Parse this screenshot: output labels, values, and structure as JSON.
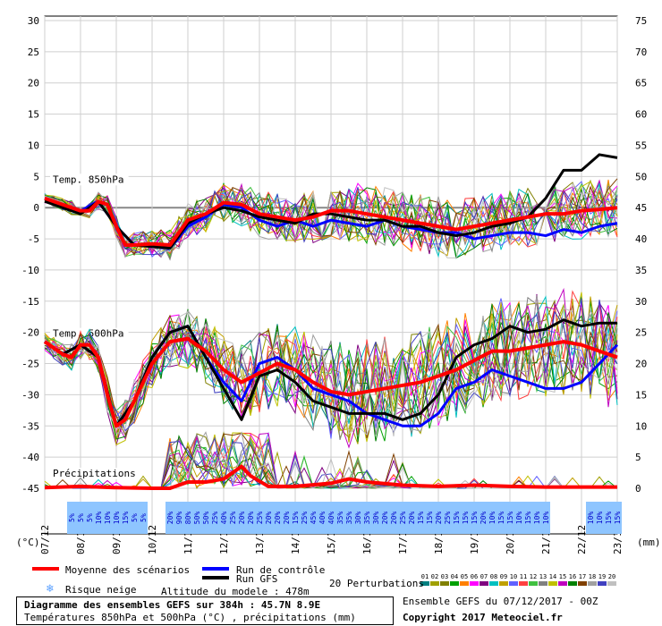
{
  "chart_data": {
    "type": "line",
    "left_axis": {
      "unit": "(°C)",
      "ticks": [
        30,
        25,
        20,
        15,
        10,
        5,
        0,
        -5,
        -10,
        -15,
        -20,
        -25,
        -30,
        -35,
        -40,
        -45
      ],
      "range": [
        -45,
        30
      ]
    },
    "right_axis": {
      "unit": "(mm)",
      "ticks": [
        75,
        70,
        65,
        60,
        55,
        50,
        45,
        40,
        35,
        30,
        25,
        20,
        15,
        10,
        5,
        0
      ],
      "range": [
        0,
        75
      ]
    },
    "x_dates": [
      "07/12",
      "08/12",
      "09/12",
      "10/12",
      "11/12",
      "12/12",
      "13/12",
      "14/12",
      "15/12",
      "16/12",
      "17/12",
      "18/12",
      "19/12",
      "20/12",
      "21/12",
      "22/12",
      "23/12"
    ],
    "x_range_hours": [
      0,
      384
    ],
    "panels": [
      {
        "label": "Temp. 850hPa"
      },
      {
        "label": "Temp. 500hPa"
      },
      {
        "label": "Précipitations"
      }
    ],
    "series_t850": {
      "mean": [
        [
          0,
          1.5
        ],
        [
          6,
          1
        ],
        [
          12,
          0.5
        ],
        [
          24,
          -0.5
        ],
        [
          30,
          -0.5
        ],
        [
          36,
          1
        ],
        [
          42,
          0.5
        ],
        [
          48,
          -3
        ],
        [
          54,
          -6
        ],
        [
          60,
          -6
        ],
        [
          72,
          -5.8
        ],
        [
          84,
          -6
        ],
        [
          96,
          -2
        ],
        [
          108,
          -1
        ],
        [
          120,
          0.8
        ],
        [
          132,
          0.5
        ],
        [
          144,
          -1
        ],
        [
          156,
          -1.5
        ],
        [
          168,
          -2
        ],
        [
          180,
          -1.5
        ],
        [
          192,
          -0.5
        ],
        [
          204,
          -0.5
        ],
        [
          216,
          -1
        ],
        [
          228,
          -1.5
        ],
        [
          240,
          -2
        ],
        [
          252,
          -2.5
        ],
        [
          264,
          -3
        ],
        [
          276,
          -3.5
        ],
        [
          288,
          -3
        ],
        [
          300,
          -2.5
        ],
        [
          312,
          -2
        ],
        [
          324,
          -1.5
        ],
        [
          336,
          -1
        ],
        [
          348,
          -1
        ],
        [
          360,
          -0.5
        ],
        [
          372,
          -0.3
        ],
        [
          384,
          0
        ]
      ],
      "control": [
        [
          0,
          1.5
        ],
        [
          12,
          0.5
        ],
        [
          24,
          -0.5
        ],
        [
          36,
          1
        ],
        [
          48,
          -3
        ],
        [
          60,
          -6
        ],
        [
          84,
          -6.5
        ],
        [
          96,
          -3
        ],
        [
          108,
          -1.5
        ],
        [
          120,
          0.5
        ],
        [
          132,
          0
        ],
        [
          144,
          -2
        ],
        [
          156,
          -3
        ],
        [
          168,
          -2
        ],
        [
          180,
          -3
        ],
        [
          192,
          -2
        ],
        [
          204,
          -2.5
        ],
        [
          216,
          -3
        ],
        [
          228,
          -2
        ],
        [
          240,
          -3
        ],
        [
          252,
          -3.5
        ],
        [
          264,
          -4
        ],
        [
          276,
          -4
        ],
        [
          288,
          -5
        ],
        [
          300,
          -4.5
        ],
        [
          312,
          -4
        ],
        [
          324,
          -4
        ],
        [
          336,
          -4.5
        ],
        [
          348,
          -3.5
        ],
        [
          360,
          -4
        ],
        [
          372,
          -3
        ],
        [
          384,
          -2.5
        ]
      ],
      "gfs": [
        [
          0,
          1
        ],
        [
          12,
          0
        ],
        [
          24,
          -1
        ],
        [
          36,
          1
        ],
        [
          48,
          -3
        ],
        [
          60,
          -6
        ],
        [
          84,
          -6.5
        ],
        [
          96,
          -2.5
        ],
        [
          108,
          -1
        ],
        [
          120,
          0
        ],
        [
          132,
          -0.5
        ],
        [
          144,
          -1.5
        ],
        [
          156,
          -2
        ],
        [
          168,
          -2.5
        ],
        [
          180,
          -1
        ],
        [
          192,
          -1
        ],
        [
          204,
          -1.5
        ],
        [
          216,
          -2
        ],
        [
          228,
          -2
        ],
        [
          240,
          -3
        ],
        [
          252,
          -3
        ],
        [
          264,
          -4
        ],
        [
          276,
          -4.5
        ],
        [
          288,
          -4
        ],
        [
          300,
          -3
        ],
        [
          312,
          -2.5
        ],
        [
          324,
          -1.5
        ],
        [
          336,
          1.5
        ],
        [
          348,
          6
        ],
        [
          360,
          6
        ],
        [
          372,
          8.5
        ],
        [
          384,
          8
        ]
      ]
    },
    "series_t500": {
      "mean": [
        [
          0,
          -21.5
        ],
        [
          12,
          -23.5
        ],
        [
          18,
          -24
        ],
        [
          24,
          -22
        ],
        [
          30,
          -22
        ],
        [
          36,
          -24
        ],
        [
          42,
          -30
        ],
        [
          48,
          -35
        ],
        [
          54,
          -34
        ],
        [
          60,
          -31
        ],
        [
          66,
          -28
        ],
        [
          72,
          -25
        ],
        [
          84,
          -21.5
        ],
        [
          96,
          -21
        ],
        [
          108,
          -23
        ],
        [
          120,
          -26
        ],
        [
          132,
          -28
        ],
        [
          144,
          -26.5
        ],
        [
          156,
          -25
        ],
        [
          168,
          -26
        ],
        [
          180,
          -28
        ],
        [
          192,
          -29.5
        ],
        [
          204,
          -30
        ],
        [
          216,
          -29.5
        ],
        [
          228,
          -29
        ],
        [
          240,
          -28.5
        ],
        [
          252,
          -28
        ],
        [
          264,
          -27
        ],
        [
          276,
          -26
        ],
        [
          288,
          -24.5
        ],
        [
          300,
          -23
        ],
        [
          312,
          -23
        ],
        [
          324,
          -22.5
        ],
        [
          336,
          -22
        ],
        [
          348,
          -21.5
        ],
        [
          360,
          -22
        ],
        [
          372,
          -23
        ],
        [
          384,
          -24
        ]
      ],
      "control": [
        [
          0,
          -21.5
        ],
        [
          12,
          -23.5
        ],
        [
          24,
          -22
        ],
        [
          36,
          -24
        ],
        [
          48,
          -35
        ],
        [
          60,
          -31
        ],
        [
          72,
          -24
        ],
        [
          84,
          -20
        ],
        [
          96,
          -19
        ],
        [
          108,
          -24
        ],
        [
          120,
          -28
        ],
        [
          132,
          -31
        ],
        [
          144,
          -25
        ],
        [
          156,
          -24
        ],
        [
          168,
          -26
        ],
        [
          180,
          -29
        ],
        [
          192,
          -30
        ],
        [
          204,
          -31
        ],
        [
          216,
          -33
        ],
        [
          228,
          -34
        ],
        [
          240,
          -35
        ],
        [
          252,
          -35
        ],
        [
          264,
          -33
        ],
        [
          276,
          -29
        ],
        [
          288,
          -28
        ],
        [
          300,
          -26
        ],
        [
          312,
          -27
        ],
        [
          324,
          -28
        ],
        [
          336,
          -29
        ],
        [
          348,
          -29
        ],
        [
          360,
          -28
        ],
        [
          372,
          -25
        ],
        [
          384,
          -22
        ]
      ],
      "gfs": [
        [
          0,
          -21.5
        ],
        [
          12,
          -23.5
        ],
        [
          24,
          -22
        ],
        [
          36,
          -24
        ],
        [
          48,
          -35
        ],
        [
          60,
          -31
        ],
        [
          72,
          -24
        ],
        [
          84,
          -20
        ],
        [
          96,
          -19
        ],
        [
          108,
          -24
        ],
        [
          120,
          -29
        ],
        [
          132,
          -34
        ],
        [
          144,
          -27
        ],
        [
          156,
          -26
        ],
        [
          168,
          -28
        ],
        [
          180,
          -31
        ],
        [
          192,
          -32
        ],
        [
          204,
          -33
        ],
        [
          216,
          -33
        ],
        [
          228,
          -33
        ],
        [
          240,
          -34
        ],
        [
          252,
          -33
        ],
        [
          264,
          -30
        ],
        [
          276,
          -24
        ],
        [
          288,
          -22
        ],
        [
          300,
          -21
        ],
        [
          312,
          -19
        ],
        [
          324,
          -20
        ],
        [
          336,
          -19.5
        ],
        [
          348,
          -18
        ],
        [
          360,
          -19
        ],
        [
          372,
          -18.5
        ],
        [
          384,
          -18.5
        ]
      ]
    },
    "series_precip": {
      "mean": [
        [
          0,
          0.1
        ],
        [
          24,
          0.3
        ],
        [
          48,
          0.1
        ],
        [
          72,
          0
        ],
        [
          84,
          0
        ],
        [
          96,
          1
        ],
        [
          108,
          1
        ],
        [
          120,
          1.5
        ],
        [
          132,
          3.5
        ],
        [
          138,
          2
        ],
        [
          150,
          0.3
        ],
        [
          168,
          0.3
        ],
        [
          192,
          0.8
        ],
        [
          204,
          1.5
        ],
        [
          216,
          1
        ],
        [
          240,
          0.5
        ],
        [
          264,
          0.3
        ],
        [
          288,
          0.5
        ],
        [
          312,
          0.3
        ],
        [
          336,
          0.2
        ],
        [
          360,
          0.2
        ],
        [
          384,
          0.2
        ]
      ]
    },
    "snow_risk_label": "Risque neige",
    "snow_risk": [
      {
        "h": 18,
        "pct": "5%"
      },
      {
        "h": 24,
        "pct": "5%"
      },
      {
        "h": 30,
        "pct": "5%"
      },
      {
        "h": 36,
        "pct": "10%"
      },
      {
        "h": 42,
        "pct": "10%"
      },
      {
        "h": 48,
        "pct": "10%"
      },
      {
        "h": 54,
        "pct": "15%"
      },
      {
        "h": 60,
        "pct": "5%"
      },
      {
        "h": 66,
        "pct": "5%"
      },
      {
        "h": 84,
        "pct": "20%"
      },
      {
        "h": 90,
        "pct": "90%"
      },
      {
        "h": 96,
        "pct": "80%"
      },
      {
        "h": 102,
        "pct": "50%"
      },
      {
        "h": 108,
        "pct": "50%"
      },
      {
        "h": 114,
        "pct": "25%"
      },
      {
        "h": 120,
        "pct": "40%"
      },
      {
        "h": 126,
        "pct": "25%"
      },
      {
        "h": 132,
        "pct": "20%"
      },
      {
        "h": 138,
        "pct": "20%"
      },
      {
        "h": 144,
        "pct": "25%"
      },
      {
        "h": 150,
        "pct": "20%"
      },
      {
        "h": 156,
        "pct": "20%"
      },
      {
        "h": 162,
        "pct": "20%"
      },
      {
        "h": 168,
        "pct": "15%"
      },
      {
        "h": 174,
        "pct": "25%"
      },
      {
        "h": 180,
        "pct": "45%"
      },
      {
        "h": 186,
        "pct": "40%"
      },
      {
        "h": 192,
        "pct": "40%"
      },
      {
        "h": 198,
        "pct": "35%"
      },
      {
        "h": 204,
        "pct": "35%"
      },
      {
        "h": 210,
        "pct": "30%"
      },
      {
        "h": 216,
        "pct": "35%"
      },
      {
        "h": 222,
        "pct": "30%"
      },
      {
        "h": 228,
        "pct": "20%"
      },
      {
        "h": 234,
        "pct": "20%"
      },
      {
        "h": 240,
        "pct": "25%"
      },
      {
        "h": 246,
        "pct": "20%"
      },
      {
        "h": 252,
        "pct": "15%"
      },
      {
        "h": 258,
        "pct": "15%"
      },
      {
        "h": 264,
        "pct": "20%"
      },
      {
        "h": 270,
        "pct": "25%"
      },
      {
        "h": 276,
        "pct": "15%"
      },
      {
        "h": 282,
        "pct": "15%"
      },
      {
        "h": 288,
        "pct": "15%"
      },
      {
        "h": 294,
        "pct": "20%"
      },
      {
        "h": 300,
        "pct": "10%"
      },
      {
        "h": 306,
        "pct": "15%"
      },
      {
        "h": 312,
        "pct": "15%"
      },
      {
        "h": 318,
        "pct": "10%"
      },
      {
        "h": 324,
        "pct": "15%"
      },
      {
        "h": 330,
        "pct": "10%"
      },
      {
        "h": 336,
        "pct": "10%"
      },
      {
        "h": 366,
        "pct": "10%"
      },
      {
        "h": 372,
        "pct": "10%"
      },
      {
        "h": 378,
        "pct": "15%"
      },
      {
        "h": 384,
        "pct": "15%"
      }
    ],
    "colors": {
      "mean": "#ff0000",
      "control": "#0000ff",
      "gfs": "#000000",
      "snow": "#8ec5ff",
      "snow_text": "#0000cc"
    }
  },
  "legend": {
    "mean": "Moyenne des scénarios",
    "control": "Run de contrôle",
    "gfs": "Run GFS",
    "perturbations": "20 Perturbations",
    "pert_numbers": [
      "01",
      "02",
      "03",
      "04",
      "05",
      "06",
      "07",
      "08",
      "09",
      "10",
      "11",
      "12",
      "13",
      "14",
      "15",
      "16",
      "17",
      "18",
      "19",
      "20"
    ],
    "pert_colors": [
      "#008080",
      "#a0a000",
      "#808000",
      "#00a000",
      "#ff8000",
      "#ff00ff",
      "#800080",
      "#00c0c0",
      "#c0a000",
      "#6060ff",
      "#ff4040",
      "#40c040",
      "#808080",
      "#c0c000",
      "#c000c0",
      "#008000",
      "#804000",
      "#a0a0a0",
      "#4040c0",
      "#c0c0c0"
    ]
  },
  "altitude": "Altitude du modele : 478m",
  "ensemble_info": "Ensemble GEFS du 07/12/2017 - 00Z",
  "copyright": "Copyright 2017 Meteociel.fr",
  "footer": {
    "title": "Diagramme des ensembles GEFS sur 384h : 45.7N 8.9E",
    "subtitle": "Températures 850hPa et 500hPa (°C) , précipitations (mm)"
  }
}
